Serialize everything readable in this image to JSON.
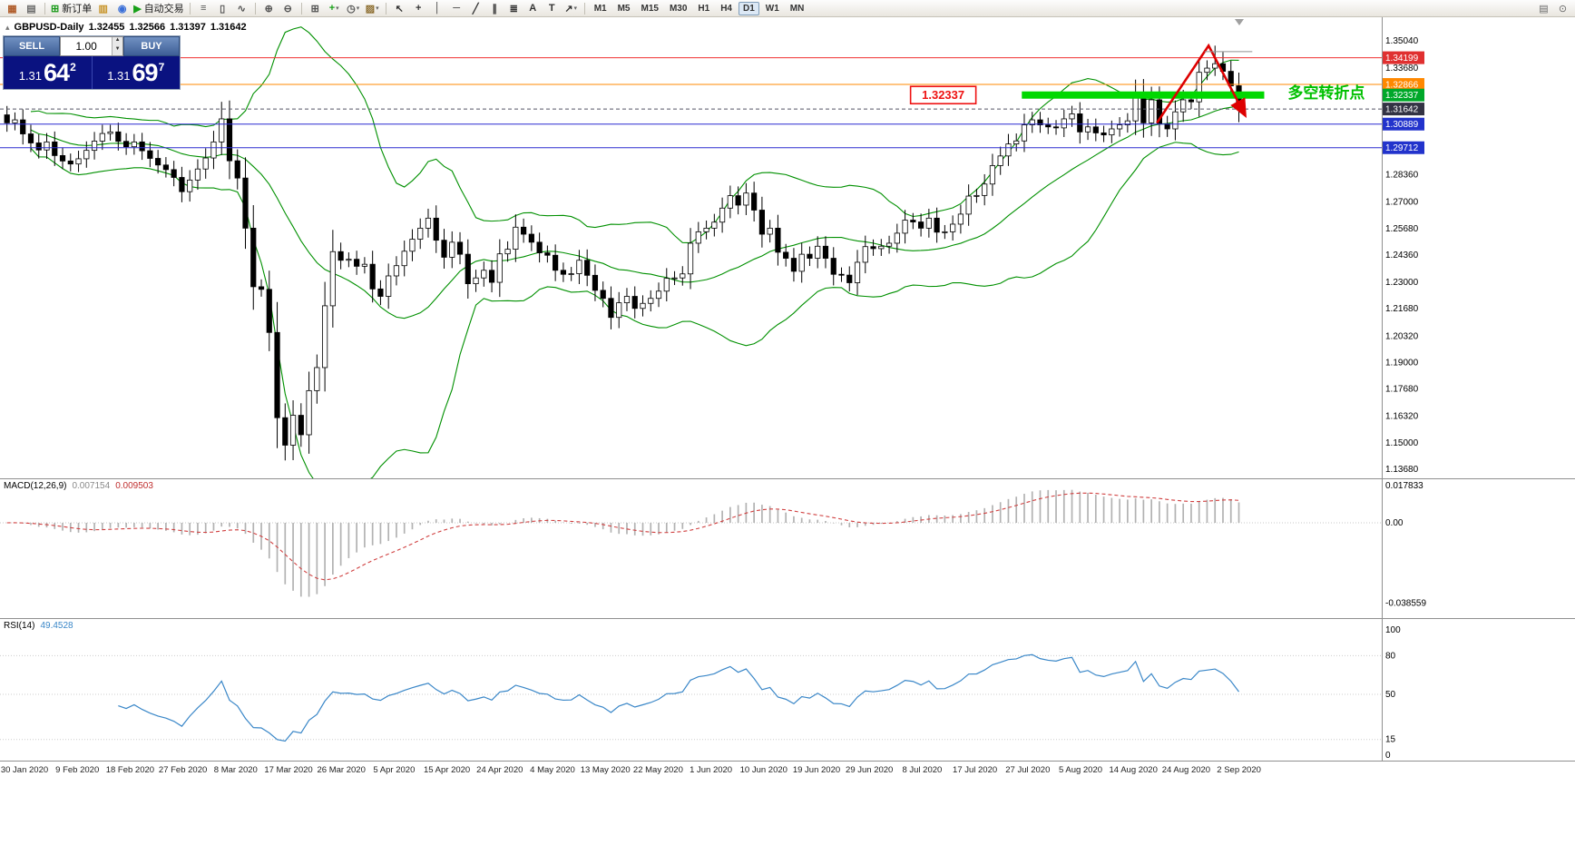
{
  "toolbar": {
    "groups": [
      {
        "name": "file",
        "items": [
          {
            "name": "new-chart-icon",
            "glyph": "▦",
            "color": "#b05c2a"
          },
          {
            "name": "profiles-icon",
            "glyph": "▤",
            "color": "#6a6a6a"
          }
        ]
      },
      {
        "name": "trade",
        "items": [
          {
            "name": "new-order-button",
            "glyph": "⊞",
            "color": "#1a9a1a",
            "label": "新订单"
          },
          {
            "name": "market-watch-icon",
            "glyph": "▥",
            "color": "#c8952a"
          },
          {
            "name": "metaquotes-icon",
            "glyph": "◉",
            "color": "#3a6fd8"
          },
          {
            "name": "autotrading-button",
            "glyph": "▶",
            "color": "#18a018",
            "label": "自动交易"
          }
        ]
      },
      {
        "name": "chart-type",
        "items": [
          {
            "name": "bar-chart-icon",
            "glyph": "≡",
            "color": "#555555"
          },
          {
            "name": "candlestick-chart-icon",
            "glyph": "▯",
            "color": "#555555"
          },
          {
            "name": "line-chart-icon",
            "glyph": "∿",
            "color": "#555555"
          }
        ]
      },
      {
        "name": "zoom",
        "items": [
          {
            "name": "zoom-in-icon",
            "glyph": "⊕",
            "color": "#555555"
          },
          {
            "name": "zoom-out-icon",
            "glyph": "⊖",
            "color": "#555555"
          }
        ]
      },
      {
        "name": "windows-indicators",
        "items": [
          {
            "name": "tile-windows-icon",
            "glyph": "⊞",
            "color": "#555555"
          },
          {
            "name": "indicators-icon",
            "glyph": "+",
            "color": "#18a018",
            "caret": true
          },
          {
            "name": "periods-icon",
            "glyph": "◷",
            "color": "#555555",
            "caret": true
          },
          {
            "name": "templates-icon",
            "glyph": "▨",
            "color": "#8a6a2a",
            "caret": true
          }
        ]
      },
      {
        "name": "objects",
        "items": [
          {
            "name": "cursor-icon",
            "glyph": "↖",
            "color": "#333333"
          },
          {
            "name": "crosshair-icon",
            "glyph": "+",
            "color": "#333333"
          },
          {
            "name": "vertical-line-icon",
            "glyph": "│",
            "color": "#333333"
          },
          {
            "name": "horizontal-line-icon",
            "glyph": "─",
            "color": "#333333"
          },
          {
            "name": "trendline-icon",
            "glyph": "╱",
            "color": "#333333"
          },
          {
            "name": "channel-icon",
            "glyph": "∥",
            "color": "#333333"
          },
          {
            "name": "fibonacci-icon",
            "glyph": "≣",
            "color": "#333333"
          },
          {
            "name": "text-icon",
            "glyph": "A",
            "color": "#333333"
          },
          {
            "name": "label-icon",
            "glyph": "T",
            "color": "#333333"
          },
          {
            "name": "arrows-icon",
            "glyph": "↗",
            "color": "#333333",
            "caret": true
          }
        ]
      }
    ],
    "timeframes": {
      "items": [
        "M1",
        "M5",
        "M15",
        "M30",
        "H1",
        "H4",
        "D1",
        "W1",
        "MN"
      ],
      "active": "D1"
    },
    "right_items": [
      {
        "name": "depth-of-market-icon",
        "glyph": "▤",
        "color": "#666666"
      },
      {
        "name": "search-icon",
        "glyph": "⊙",
        "color": "#666666"
      }
    ]
  },
  "info_line": {
    "toggle_glyph": "▴",
    "symbol": "GBPUSD-Daily",
    "open": "1.32455",
    "high": "1.32566",
    "low": "1.31397",
    "close": "1.31642"
  },
  "one_click": {
    "sell_label": "SELL",
    "buy_label": "BUY",
    "volume": "1.00",
    "spin_up": "▲",
    "spin_down": "▼",
    "sell_price": {
      "prefix": "1.31",
      "big": "64",
      "sup": "2"
    },
    "buy_price": {
      "prefix": "1.31",
      "big": "69",
      "sup": "7"
    }
  },
  "price_axis": {
    "ticks": [
      "1.35040",
      "1.33680",
      "1.28360",
      "1.27000",
      "1.25680",
      "1.24360",
      "1.23000",
      "1.21680",
      "1.20320",
      "1.19000",
      "1.17680",
      "1.16320",
      "1.15000",
      "1.13680"
    ]
  },
  "chart_data": {
    "type": "candlestick",
    "symbol": "GBPUSD",
    "timeframe": "Daily",
    "price_range": [
      1.1368,
      1.3504
    ],
    "first_open": 1.3135,
    "closes": [
      1.3095,
      1.311,
      1.304,
      1.2995,
      1.296,
      1.3,
      1.2932,
      1.2905,
      1.289,
      1.2916,
      1.2958,
      1.3004,
      1.3042,
      1.305,
      1.3003,
      1.2976,
      1.3,
      1.2956,
      1.2918,
      1.2885,
      1.2862,
      1.2823,
      1.2752,
      1.281,
      1.2865,
      1.292,
      1.3,
      1.3115,
      1.2906,
      1.282,
      1.257,
      1.2278,
      1.2265,
      1.205,
      1.1625,
      1.1488,
      1.1637,
      1.154,
      1.176,
      1.1875,
      1.2183,
      1.2453,
      1.241,
      1.2415,
      1.238,
      1.239,
      1.2267,
      1.223,
      1.2332,
      1.2383,
      1.2455,
      1.2515,
      1.257,
      1.262,
      1.251,
      1.2425,
      1.25,
      1.244,
      1.2293,
      1.2322,
      1.236,
      1.23,
      1.2442,
      1.2465,
      1.2575,
      1.254,
      1.25,
      1.2447,
      1.2435,
      1.236,
      1.234,
      1.2343,
      1.241,
      1.2335,
      1.226,
      1.222,
      1.2125,
      1.2198,
      1.223,
      1.217,
      1.2195,
      1.222,
      1.2256,
      1.232,
      1.2322,
      1.2342,
      1.2495,
      1.2552,
      1.257,
      1.26,
      1.267,
      1.2732,
      1.2685,
      1.2745,
      1.266,
      1.254,
      1.257,
      1.245,
      1.242,
      1.2355,
      1.244,
      1.242,
      1.248,
      1.242,
      1.234,
      1.2336,
      1.2298,
      1.24,
      1.2478,
      1.2468,
      1.248,
      1.2495,
      1.2545,
      1.261,
      1.2601,
      1.257,
      1.262,
      1.255,
      1.2552,
      1.259,
      1.264,
      1.273,
      1.2733,
      1.279,
      1.2882,
      1.293,
      1.299,
      1.3005,
      1.3085,
      1.311,
      1.3085,
      1.3075,
      1.307,
      1.3115,
      1.314,
      1.305,
      1.3075,
      1.3045,
      1.3035,
      1.3065,
      1.3085,
      1.3105,
      1.324,
      1.3095,
      1.321,
      1.309,
      1.3065,
      1.315,
      1.321,
      1.32,
      1.3347,
      1.3368,
      1.339,
      1.3352,
      1.328,
      1.3164
    ],
    "wick_overrides": {
      "27": {
        "high": 1.32
      },
      "35": {
        "low": 1.1412
      },
      "152": {
        "high": 1.348
      },
      "153": {
        "high": 1.3448
      }
    },
    "hlines": [
      {
        "price": 1.34199,
        "color": "#f03030",
        "badge": "1.34199",
        "badge_color": "#e03030"
      },
      {
        "price": 1.32866,
        "color": "#ff8800",
        "badge": "1.32866",
        "badge_color": "#ff8800"
      },
      {
        "price": 1.31642,
        "color": "#555566",
        "badge": "1.31642",
        "badge_color": "#333344",
        "dashed": true
      },
      {
        "price": 1.30889,
        "color": "#2a2ad0",
        "badge": "1.30889",
        "badge_color": "#2233cc"
      },
      {
        "price": 1.29712,
        "color": "#2a2ad0",
        "badge": "1.29712",
        "badge_color": "#2233cc"
      }
    ],
    "annotations": {
      "support_band": {
        "price": 1.32337,
        "from_index": 128,
        "to_index": 158.5,
        "color": "#00d800",
        "badge": "1.32337",
        "badge_color": "#00a82a"
      },
      "price_label": {
        "text": "1.32337",
        "index": 114,
        "price": 1.32337,
        "color": "#ee1111"
      },
      "turning_point_text": {
        "text": "多空转折点",
        "price": 1.3245,
        "x_frac": 0.932,
        "color": "#00c000"
      },
      "trend_arrow": {
        "color": "#dd0000",
        "points": [
          {
            "index": 145,
            "price": 1.3095
          },
          {
            "index": 151.5,
            "price": 1.348
          },
          {
            "index": 156,
            "price": 1.314
          }
        ]
      },
      "high_line": {
        "from_index": 151,
        "to_index": 157,
        "price": 1.345,
        "color": "#909090"
      }
    },
    "indicators": {
      "bollinger": {
        "period": 20,
        "deviation": 2,
        "color": "#009000"
      },
      "macd": {
        "label": "MACD(12,26,9)",
        "values_text": [
          "0.007154",
          "0.009503"
        ],
        "axis": [
          "0.017833",
          "0.00",
          "-0.038559"
        ]
      },
      "rsi": {
        "label": "RSI(14)",
        "value_text": "49.4528",
        "axis": [
          "100",
          "80",
          "50",
          "15",
          "0"
        ],
        "levels": [
          80,
          50,
          15
        ]
      }
    },
    "dates": [
      "30 Jan 2020",
      "9 Feb 2020",
      "18 Feb 2020",
      "27 Feb 2020",
      "8 Mar 2020",
      "17 Mar 2020",
      "26 Mar 2020",
      "5 Apr 2020",
      "15 Apr 2020",
      "24 Apr 2020",
      "4 May 2020",
      "13 May 2020",
      "22 May 2020",
      "1 Jun 2020",
      "10 Jun 2020",
      "19 Jun 2020",
      "29 Jun 2020",
      "8 Jul 2020",
      "17 Jul 2020",
      "27 Jul 2020",
      "5 Aug 2020",
      "14 Aug 2020",
      "24 Aug 2020",
      "2 Sep 2020"
    ]
  }
}
